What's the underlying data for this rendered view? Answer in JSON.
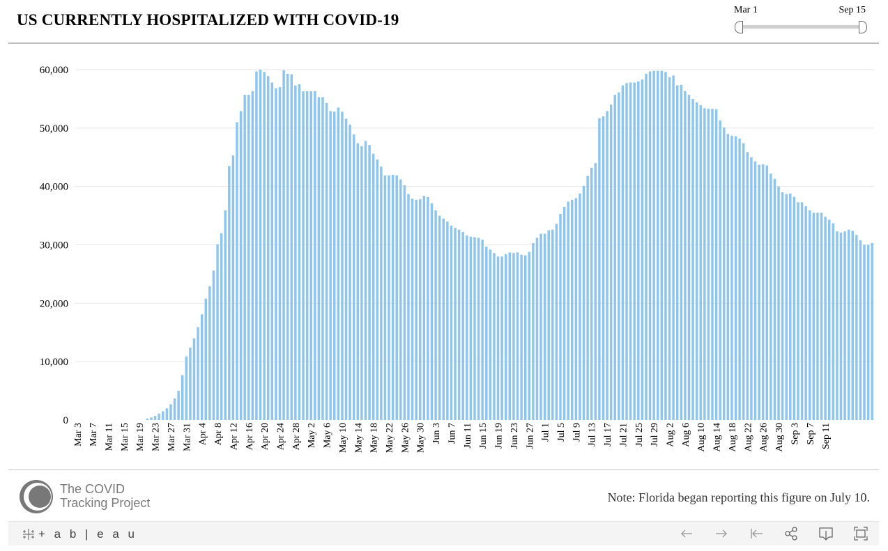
{
  "title": "US CURRENTLY HOSPITALIZED WITH COVID-19",
  "slider": {
    "start_label": "Mar 1",
    "end_label": "Sep 15"
  },
  "note": "Note: Florida began reporting this figure on July 10.",
  "logo": {
    "line1": "The COVID",
    "line2": "Tracking Project"
  },
  "footer": {
    "brand": "+ a b | e a u"
  },
  "colors": {
    "bar": "#8ec5ef",
    "grid": "#e6e6e6",
    "text": "#000000"
  },
  "chart_data": {
    "type": "bar",
    "title": "US CURRENTLY HOSPITALIZED WITH COVID-19",
    "xlabel": "",
    "ylabel": "",
    "ylim": [
      0,
      60000
    ],
    "yticks": [
      0,
      10000,
      20000,
      30000,
      40000,
      50000,
      60000
    ],
    "ytick_labels": [
      "0",
      "10,000",
      "20,000",
      "30,000",
      "40,000",
      "50,000",
      "60,000"
    ],
    "xtick_labels": [
      "Mar 3",
      "Mar 7",
      "Mar 11",
      "Mar 15",
      "Mar 19",
      "Mar 23",
      "Mar 27",
      "Mar 31",
      "Apr 4",
      "Apr 8",
      "Apr 12",
      "Apr 16",
      "Apr 20",
      "Apr 24",
      "Apr 28",
      "May 2",
      "May 6",
      "May 10",
      "May 14",
      "May 18",
      "May 22",
      "May 26",
      "May 30",
      "Jun 3",
      "Jun 7",
      "Jun 11",
      "Jun 15",
      "Jun 19",
      "Jun 23",
      "Jun 27",
      "Jul 1",
      "Jul 5",
      "Jul 9",
      "Jul 13",
      "Jul 17",
      "Jul 21",
      "Jul 25",
      "Jul 29",
      "Aug 2",
      "Aug 6",
      "Aug 10",
      "Aug 14",
      "Aug 18",
      "Aug 22",
      "Aug 26",
      "Aug 30",
      "Sep 3",
      "Sep 7",
      "Sep 11"
    ],
    "grid": true,
    "legend": "none",
    "start_date": "Mar 3",
    "values": [
      0,
      0,
      0,
      0,
      0,
      0,
      0,
      0,
      0,
      0,
      0,
      0,
      0,
      0,
      0,
      0,
      0,
      0,
      250,
      450,
      700,
      1100,
      1500,
      2000,
      2700,
      3700,
      5000,
      7700,
      10900,
      12400,
      14000,
      15900,
      18100,
      20800,
      22900,
      25600,
      30100,
      32000,
      35900,
      43500,
      45300,
      51000,
      52900,
      55700,
      55700,
      56300,
      59700,
      60000,
      59600,
      58900,
      57800,
      56800,
      57000,
      59900,
      59300,
      59200,
      57300,
      57500,
      56300,
      56300,
      56300,
      56300,
      55300,
      55300,
      54300,
      52900,
      52800,
      53500,
      52800,
      51600,
      50600,
      48900,
      47400,
      46900,
      47800,
      47100,
      45600,
      44600,
      43400,
      41900,
      41900,
      42000,
      41900,
      41200,
      40200,
      38700,
      37900,
      37700,
      37800,
      38400,
      38200,
      37100,
      35900,
      35000,
      34500,
      34000,
      33300,
      32900,
      32600,
      32200,
      31600,
      31400,
      31300,
      31200,
      30900,
      29700,
      29200,
      28600,
      28000,
      28000,
      28400,
      28700,
      28600,
      28700,
      28300,
      28200,
      28800,
      30300,
      31200,
      31900,
      31900,
      32500,
      32600,
      33600,
      35300,
      36500,
      37400,
      37700,
      38000,
      38800,
      40100,
      41800,
      43200,
      44000,
      51700,
      52000,
      52900,
      54000,
      55700,
      56100,
      57300,
      57700,
      57800,
      57800,
      58000,
      58300,
      59300,
      59700,
      59800,
      59800,
      59800,
      59600,
      58700,
      59000,
      57300,
      57400,
      56300,
      55700,
      55000,
      54400,
      53900,
      53400,
      53300,
      53300,
      53200,
      51300,
      50100,
      49000,
      48700,
      48600,
      48200,
      47400,
      45900,
      45000,
      44300,
      43700,
      43800,
      43600,
      42200,
      41300,
      40000,
      39000,
      38700,
      38800,
      38200,
      37300,
      37300,
      36600,
      35900,
      35500,
      35500,
      35500,
      34800,
      34300,
      33700,
      32300,
      32100,
      32300,
      32600,
      32400,
      31700,
      30800,
      30000,
      30000,
      30300
    ]
  }
}
